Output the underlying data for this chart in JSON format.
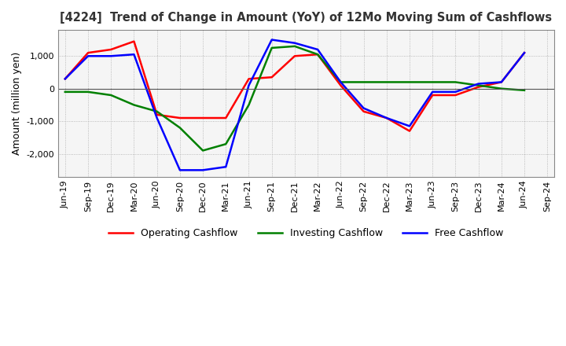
{
  "title": "[4224]  Trend of Change in Amount (YoY) of 12Mo Moving Sum of Cashflows",
  "ylabel": "Amount (million yen)",
  "background_color": "#ffffff",
  "plot_bg_color": "#f5f5f5",
  "grid_color": "#aaaaaa",
  "x_labels": [
    "Jun-19",
    "Sep-19",
    "Dec-19",
    "Mar-20",
    "Jun-20",
    "Sep-20",
    "Dec-20",
    "Mar-21",
    "Jun-21",
    "Sep-21",
    "Dec-21",
    "Mar-22",
    "Jun-22",
    "Sep-22",
    "Dec-22",
    "Mar-23",
    "Jun-23",
    "Sep-23",
    "Dec-23",
    "Mar-24",
    "Jun-24",
    "Sep-24"
  ],
  "operating": [
    300,
    1100,
    1200,
    1450,
    -800,
    -900,
    -900,
    -900,
    300,
    350,
    1000,
    1050,
    100,
    -700,
    -900,
    -1300,
    -200,
    -200,
    50,
    200,
    1100,
    null
  ],
  "investing": [
    -100,
    -100,
    -200,
    -500,
    -700,
    -1200,
    -1900,
    -1700,
    -500,
    1250,
    1300,
    1050,
    200,
    200,
    200,
    200,
    200,
    200,
    100,
    0,
    -50,
    null
  ],
  "free": [
    300,
    1000,
    1000,
    1050,
    -900,
    -2500,
    -2500,
    -2400,
    100,
    1500,
    1400,
    1200,
    200,
    -600,
    -900,
    -1150,
    -100,
    -100,
    150,
    200,
    1100,
    null
  ],
  "ylim": [
    -2700,
    1800
  ],
  "yticks": [
    -2000,
    -1000,
    0,
    1000
  ],
  "line_colors": {
    "operating": "#ff0000",
    "investing": "#008000",
    "free": "#0000ff"
  },
  "legend_labels": {
    "operating": "Operating Cashflow",
    "investing": "Investing Cashflow",
    "free": "Free Cashflow"
  }
}
